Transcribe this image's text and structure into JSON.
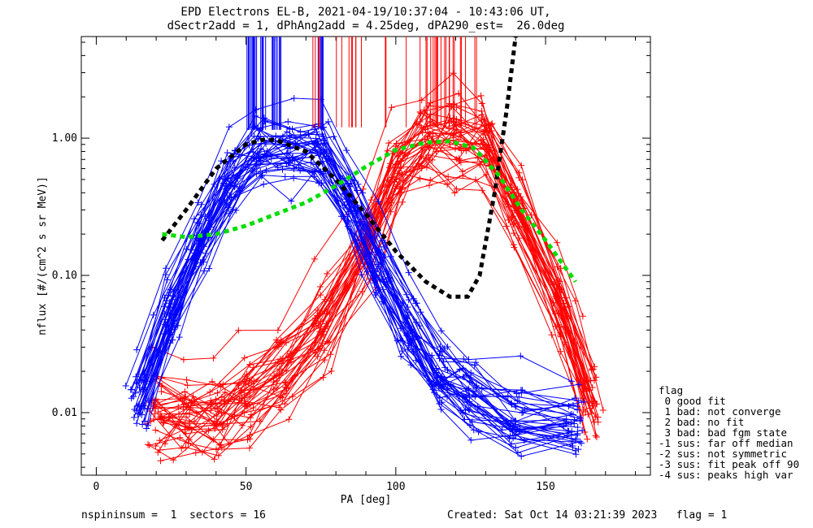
{
  "chart_data": {
    "type": "line",
    "title_line1": "EPD Electrons EL-B, 2021-04-19/10:37:04 - 10:43:06 UT,",
    "title_line2": "dSectr2add = 1, dPhAng2add = 4.25deg, dPA290_est=  26.0deg",
    "xlabel": "PA [deg]",
    "ylabel": "nflux [#/(cm^2 s sr MeV)]",
    "xlim": [
      -5,
      185
    ],
    "ylim": [
      0.0035,
      5.5
    ],
    "yscale": "log",
    "xticks": [
      0,
      50,
      100,
      150
    ],
    "xtick_labels": [
      "0",
      "50",
      "100",
      "150"
    ],
    "yticks": [
      0.01,
      0.1,
      1.0
    ],
    "ytick_labels": [
      "0.01",
      "0.10",
      "1.00"
    ],
    "colors": {
      "blue": "#0000ff",
      "red": "#ff0000",
      "black_fit": "#000000",
      "green_fit": "#00dd00"
    },
    "series": [
      {
        "color": "blue",
        "x": [
          15,
          25,
          35,
          45,
          55,
          65,
          75,
          85,
          95,
          105,
          115,
          125,
          140,
          160
        ],
        "y": [
          0.014,
          0.06,
          0.2,
          0.55,
          0.95,
          0.9,
          0.88,
          0.4,
          0.12,
          0.045,
          0.02,
          0.015,
          0.01,
          0.009
        ]
      },
      {
        "color": "red",
        "x": [
          20,
          30,
          40,
          50,
          62,
          75,
          90,
          100,
          110,
          120,
          130,
          140,
          155,
          165
        ],
        "y": [
          0.009,
          0.009,
          0.009,
          0.012,
          0.018,
          0.04,
          0.16,
          0.55,
          0.92,
          0.95,
          0.85,
          0.3,
          0.06,
          0.012
        ]
      },
      {
        "color": "black_fit",
        "x": [
          22,
          30,
          40,
          50,
          55,
          60,
          70,
          80,
          90,
          100,
          110,
          118,
          124,
          128,
          133,
          137,
          140
        ],
        "y": [
          0.18,
          0.3,
          0.6,
          0.9,
          0.97,
          0.97,
          0.8,
          0.5,
          0.28,
          0.15,
          0.09,
          0.07,
          0.07,
          0.1,
          0.4,
          1.6,
          5.5
        ]
      },
      {
        "color": "green_fit",
        "x": [
          22,
          30,
          40,
          50,
          60,
          70,
          80,
          90,
          100,
          110,
          118,
          126,
          134,
          142,
          150,
          160
        ],
        "y": [
          0.2,
          0.19,
          0.2,
          0.23,
          0.28,
          0.34,
          0.45,
          0.62,
          0.82,
          0.93,
          0.95,
          0.85,
          0.55,
          0.3,
          0.18,
          0.09
        ]
      }
    ]
  },
  "legend": {
    "title": "flag",
    "items": [
      " 0 good fit",
      " 1 bad: not converge",
      " 2 bad: no fit",
      " 3 bad: bad fgm state",
      "-1 sus: far off median",
      "-2 sus: not symmetric",
      "-3 sus: fit peak off 90",
      "-4 sus: peaks high var"
    ]
  },
  "footer": {
    "left": "nspininsum =  1  sectors = 16",
    "right": "Created: Sat Oct 14 03:21:39 2023   flag = 1"
  }
}
